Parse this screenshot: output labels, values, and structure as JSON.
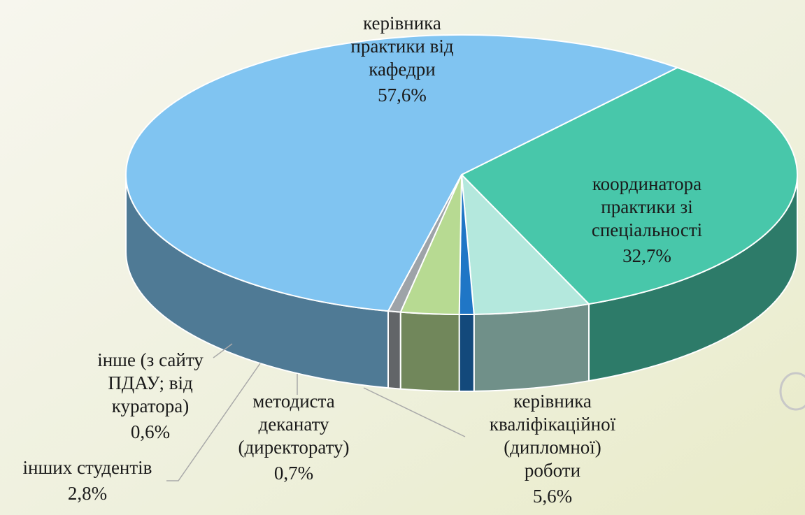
{
  "chart_data": {
    "type": "pie",
    "categories": [
      "координатора\nпрактики зі\nспеціальності",
      "керівника\nкваліфікаційної\n(дипломної)\nроботи",
      "методиста\nдеканату\n(директорату)",
      "інших студентів",
      "інше (з сайту\nПДАУ; від\nкуратора)",
      "керівника\nпрактики від\nкафедри"
    ],
    "values": [
      32.7,
      5.6,
      0.7,
      2.8,
      0.6,
      57.6
    ],
    "value_labels": [
      "32,7%",
      "5,6%",
      "0,7%",
      "2,8%",
      "0,6%",
      "57,6%"
    ],
    "colors": [
      "#48c7aa",
      "#b4e8dd",
      "#1f76c6",
      "#b7da92",
      "#9ea3a8",
      "#80c4f1"
    ]
  }
}
